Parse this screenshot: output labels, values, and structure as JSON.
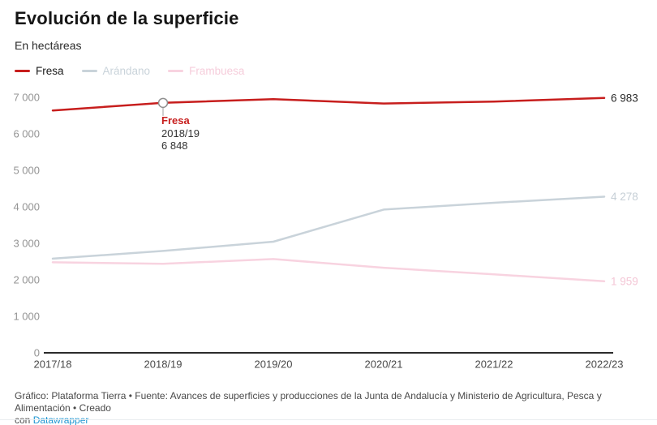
{
  "header": {
    "title": "Evolución de la superficie",
    "subtitle": "En hectáreas"
  },
  "legend": {
    "items": [
      {
        "label": "Fresa",
        "swatch_color": "#c71e1d",
        "text_color": "#1a1a1a",
        "state": "active"
      },
      {
        "label": "Arándano",
        "swatch_color": "#c9d3da",
        "text_color": "#c9d3da",
        "state": "muted"
      },
      {
        "label": "Frambuesa",
        "swatch_color": "#f8d3e0",
        "text_color": "#f6cddb",
        "state": "muted"
      }
    ]
  },
  "chart_data": {
    "type": "line",
    "categories": [
      "2017/18",
      "2018/19",
      "2019/20",
      "2020/21",
      "2021/22",
      "2022/23"
    ],
    "series": [
      {
        "name": "Fresa",
        "color": "#c71e1d",
        "values": [
          6640,
          6848,
          6950,
          6830,
          6885,
          6983
        ],
        "end_label": "6 983",
        "end_label_color": "#2b2b2b"
      },
      {
        "name": "Arándano",
        "color": "#c9d3da",
        "values": [
          2580,
          2790,
          3045,
          3925,
          4110,
          4278
        ],
        "end_label": "4 278",
        "end_label_color": "#c6cfd6"
      },
      {
        "name": "Frambuesa",
        "color": "#f8d3e0",
        "values": [
          2480,
          2440,
          2570,
          2330,
          2150,
          1959
        ],
        "end_label": "1 959",
        "end_label_color": "#f4c7d6"
      }
    ],
    "title": "Evolución de la superficie",
    "subtitle": "En hectáreas",
    "xlabel": "",
    "ylabel": "En hectáreas",
    "ylim": [
      0,
      7000
    ],
    "y_ticks": [
      "0",
      "1 000",
      "2 000",
      "3 000",
      "4 000",
      "5 000",
      "6 000",
      "7 000"
    ],
    "grid": false,
    "legend_position": "top"
  },
  "tooltip": {
    "series": "Fresa",
    "series_color": "#c71e1d",
    "period": "2018/19",
    "value": "6 848",
    "marker_series_index": 0,
    "marker_point_index": 1
  },
  "axis": {
    "baseline_color": "#2b2b2b",
    "y_tick_color": "#949494",
    "x_tick_color": "#494949"
  },
  "footer": {
    "line1": "Gráfico: Plataforma Tierra • Fuente: Avances de superficies y producciones de la Junta de Andalucía y Ministerio de Agricultura, Pesca y Alimentación • Creado",
    "line2_prefix": "con ",
    "link_label": "Datawrapper",
    "link_color": "#1e96d2"
  }
}
